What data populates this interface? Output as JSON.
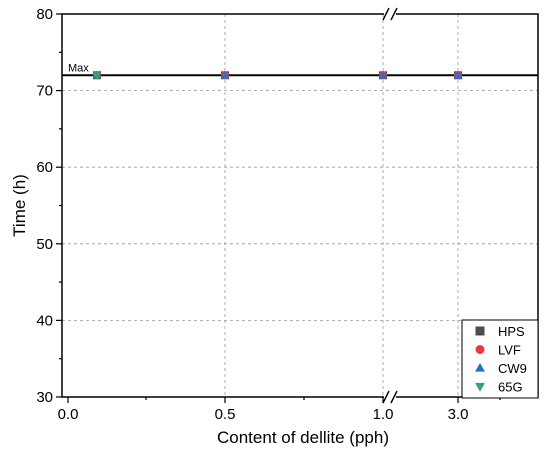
{
  "chart_data": {
    "type": "scatter",
    "title": "",
    "xlabel": "Content of dellite (pph)",
    "ylabel": "Time (h)",
    "x_tick_labels": [
      "0.0",
      "0.5",
      "1.0",
      "3.0"
    ],
    "x_axis_break": "between 1.0 and 3.0",
    "ylim": [
      30,
      80
    ],
    "y_ticks": [
      30,
      40,
      50,
      60,
      70,
      80
    ],
    "y_tick_labels": [
      "30",
      "40",
      "50",
      "60",
      "70",
      "80"
    ],
    "grid": true,
    "legend_position": "bottom-right",
    "reference_line": {
      "label": "Max",
      "y": 72
    },
    "x": [
      "0.1",
      "0.5",
      "1.0",
      "3.0"
    ],
    "series": [
      {
        "name": "HPS",
        "marker": "square",
        "color": "#4d4d4d",
        "values": [
          72,
          72,
          72,
          72
        ]
      },
      {
        "name": "LVF",
        "marker": "circle",
        "color": "#e8383d",
        "values": [
          72,
          72,
          72,
          72
        ]
      },
      {
        "name": "CW9",
        "marker": "triangle-up",
        "color": "#2a6ed4",
        "values": [
          72,
          72,
          72,
          72
        ]
      },
      {
        "name": "65G",
        "marker": "triangle-down",
        "color": "#2ea866",
        "values": [
          72
        ]
      }
    ]
  }
}
